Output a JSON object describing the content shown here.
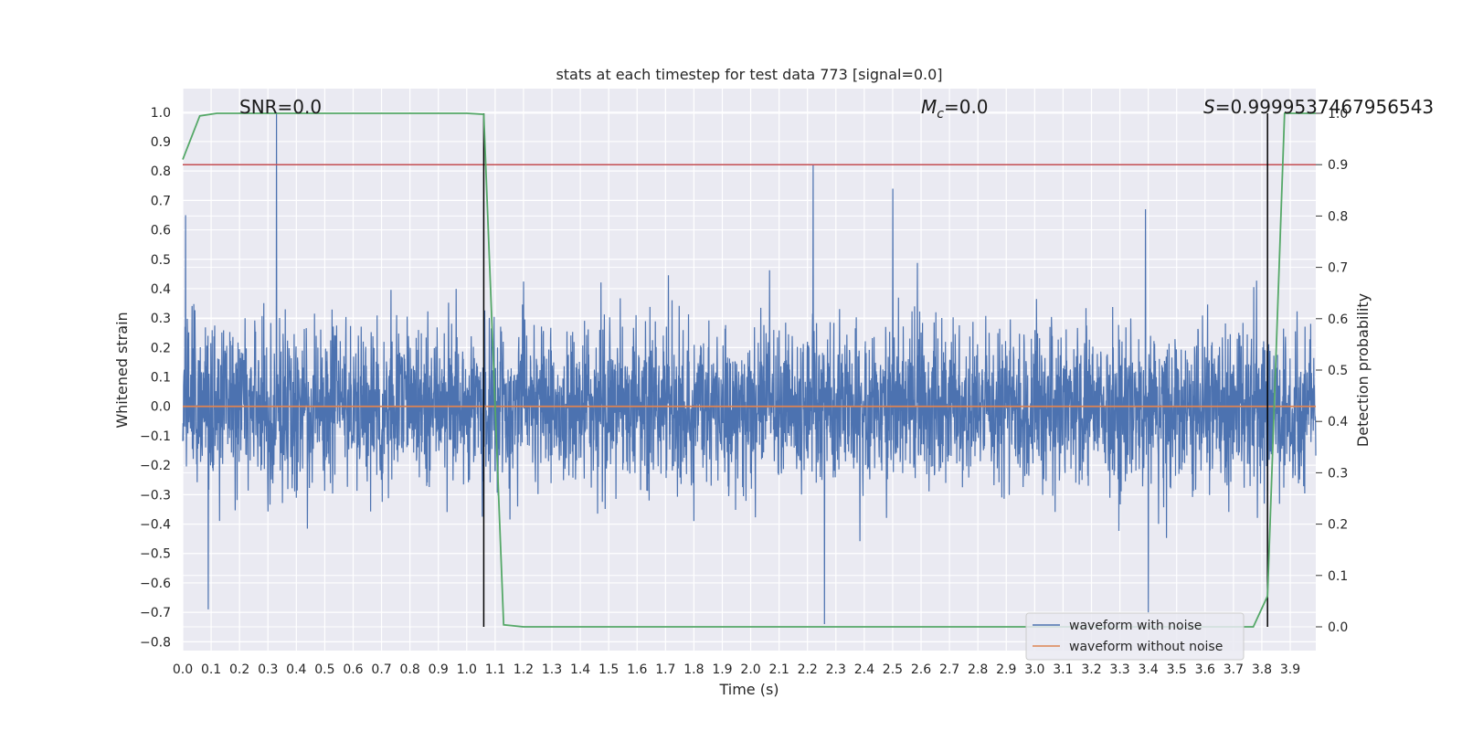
{
  "chart_data": {
    "type": "line",
    "title": "stats at each timestep for test data 773 [signal=0.0]",
    "xlabel": "Time (s)",
    "ylabel": "Whitened strain",
    "y2label": "Detection probability",
    "xlim": [
      0.0,
      3.99
    ],
    "ylim": [
      -0.83,
      1.08
    ],
    "y2lim": [
      -0.05,
      1.0
    ],
    "x_ticks": [
      "0.0",
      "0.1",
      "0.2",
      "0.3",
      "0.4",
      "0.5",
      "0.6",
      "0.7",
      "0.8",
      "0.9",
      "1.0",
      "1.1",
      "1.2",
      "1.3",
      "1.4",
      "1.5",
      "1.6",
      "1.7",
      "1.8",
      "1.9",
      "2.0",
      "2.1",
      "2.2",
      "2.3",
      "2.4",
      "2.5",
      "2.6",
      "2.7",
      "2.8",
      "2.9",
      "3.0",
      "3.1",
      "3.2",
      "3.3",
      "3.4",
      "3.5",
      "3.6",
      "3.7",
      "3.8",
      "3.9"
    ],
    "y_ticks": [
      "1.0",
      "0.9",
      "0.8",
      "0.7",
      "0.6",
      "0.5",
      "0.4",
      "0.3",
      "0.2",
      "0.1",
      "0.0",
      "−0.1",
      "−0.2",
      "−0.3",
      "−0.4",
      "−0.5",
      "−0.6",
      "−0.7",
      "−0.8"
    ],
    "y2_ticks": [
      "1.0",
      "0.9",
      "0.8",
      "0.7",
      "0.6",
      "0.5",
      "0.4",
      "0.3",
      "0.2",
      "0.1",
      "0.0"
    ],
    "grid": true,
    "legend_position": "lower-right",
    "annotations": {
      "snr": "SNR=0.0",
      "mc_symbol": "M",
      "mc_sub": "c",
      "mc_value": "=0.0",
      "s_symbol": "S",
      "s_value": "=0.9999537467956543"
    },
    "series": [
      {
        "name": "waveform with noise",
        "color": "#4c72b0",
        "axis": "left",
        "noise_amplitude": 0.3,
        "notable_peaks": [
          {
            "x": 0.01,
            "y": 0.65
          },
          {
            "x": 0.33,
            "y": 1.0
          },
          {
            "x": 0.09,
            "y": -0.69
          },
          {
            "x": 2.22,
            "y": 0.82
          },
          {
            "x": 2.26,
            "y": -0.74
          },
          {
            "x": 2.5,
            "y": 0.74
          },
          {
            "x": 3.4,
            "y": -0.7
          },
          {
            "x": 3.39,
            "y": 0.67
          }
        ]
      },
      {
        "name": "waveform without noise",
        "color": "#dd8452",
        "axis": "left",
        "x": [
          0.0,
          3.99
        ],
        "y": [
          0.0,
          0.0
        ]
      },
      {
        "color": "#55a868",
        "axis": "right",
        "x": [
          0.0,
          0.06,
          0.12,
          1.0,
          1.06,
          1.13,
          1.2,
          3.77,
          3.82,
          3.88,
          3.99
        ],
        "y": [
          0.91,
          0.995,
          1.0,
          1.0,
          0.998,
          0.004,
          0.0,
          0.0,
          0.06,
          1.0,
          1.0
        ]
      }
    ],
    "threshold": {
      "axis": "right",
      "value": 0.9,
      "color": "#c44e52"
    },
    "vertical_markers": [
      {
        "x": 1.06,
        "color": "#000000"
      },
      {
        "x": 3.82,
        "color": "#000000"
      }
    ]
  }
}
